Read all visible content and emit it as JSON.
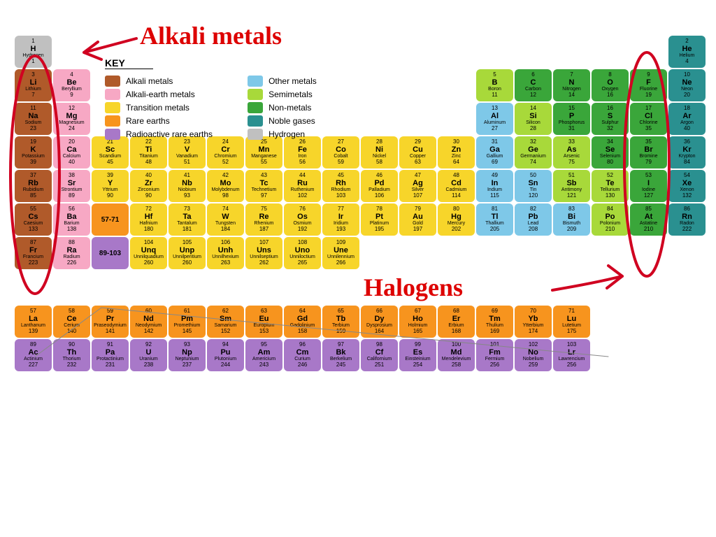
{
  "colors": {
    "hydrogen": "#c0c0c0",
    "alkali": "#b05a2a",
    "alkearth": "#f7a8c4",
    "transition": "#f7d52a",
    "rare": "#f7941e",
    "radioactive": "#a878c8",
    "other": "#7ec8e8",
    "semi": "#a8d93a",
    "nonmetal": "#3aa63a",
    "noble": "#2a9090",
    "annot": "#d00020"
  },
  "key": {
    "title": "KEY",
    "left": [
      {
        "c": "alkali",
        "t": "Alkali metals"
      },
      {
        "c": "alkearth",
        "t": "Alkali-earth metals"
      },
      {
        "c": "transition",
        "t": "Transition metals"
      },
      {
        "c": "rare",
        "t": "Rare earths"
      },
      {
        "c": "radioactive",
        "t": "Radioactive rare earths"
      }
    ],
    "right": [
      {
        "c": "other",
        "t": "Other metals"
      },
      {
        "c": "semi",
        "t": "Semimetals"
      },
      {
        "c": "nonmetal",
        "t": "Non-metals"
      },
      {
        "c": "noble",
        "t": "Noble gases"
      },
      {
        "c": "hydrogen",
        "t": "Hydrogen"
      }
    ]
  },
  "annotations": {
    "alkali": "Alkali metals",
    "halogens": "Halogens"
  },
  "lanth_range": "57-71",
  "act_range": "89-103",
  "elements": [
    {
      "n": 1,
      "s": "H",
      "name": "Hydrogen",
      "m": "1",
      "c": "hydrogen",
      "r": 1,
      "col": 1
    },
    {
      "n": 2,
      "s": "He",
      "name": "Helium",
      "m": "4",
      "c": "noble",
      "r": 1,
      "col": 18
    },
    {
      "n": 3,
      "s": "Li",
      "name": "Lithium",
      "m": "7",
      "c": "alkali",
      "r": 2,
      "col": 1
    },
    {
      "n": 4,
      "s": "Be",
      "name": "Beryllium",
      "m": "9",
      "c": "alkearth",
      "r": 2,
      "col": 2
    },
    {
      "n": 5,
      "s": "B",
      "name": "Boron",
      "m": "11",
      "c": "semi",
      "r": 2,
      "col": 13
    },
    {
      "n": 6,
      "s": "C",
      "name": "Carbon",
      "m": "12",
      "c": "nonmetal",
      "r": 2,
      "col": 14
    },
    {
      "n": 7,
      "s": "N",
      "name": "Nitrogen",
      "m": "14",
      "c": "nonmetal",
      "r": 2,
      "col": 15
    },
    {
      "n": 8,
      "s": "O",
      "name": "Oxygen",
      "m": "16",
      "c": "nonmetal",
      "r": 2,
      "col": 16
    },
    {
      "n": 9,
      "s": "F",
      "name": "Fluorine",
      "m": "19",
      "c": "nonmetal",
      "r": 2,
      "col": 17
    },
    {
      "n": 10,
      "s": "Ne",
      "name": "Neon",
      "m": "20",
      "c": "noble",
      "r": 2,
      "col": 18
    },
    {
      "n": 11,
      "s": "Na",
      "name": "Sodium",
      "m": "23",
      "c": "alkali",
      "r": 3,
      "col": 1
    },
    {
      "n": 12,
      "s": "Mg",
      "name": "Magnesium",
      "m": "24",
      "c": "alkearth",
      "r": 3,
      "col": 2
    },
    {
      "n": 13,
      "s": "Al",
      "name": "Aluminum",
      "m": "27",
      "c": "other",
      "r": 3,
      "col": 13
    },
    {
      "n": 14,
      "s": "Si",
      "name": "Silicon",
      "m": "28",
      "c": "semi",
      "r": 3,
      "col": 14
    },
    {
      "n": 15,
      "s": "P",
      "name": "Phosphorus",
      "m": "31",
      "c": "nonmetal",
      "r": 3,
      "col": 15
    },
    {
      "n": 16,
      "s": "S",
      "name": "Sulphur",
      "m": "32",
      "c": "nonmetal",
      "r": 3,
      "col": 16
    },
    {
      "n": 17,
      "s": "Cl",
      "name": "Chlorine",
      "m": "35",
      "c": "nonmetal",
      "r": 3,
      "col": 17
    },
    {
      "n": 18,
      "s": "Ar",
      "name": "Argon",
      "m": "40",
      "c": "noble",
      "r": 3,
      "col": 18
    },
    {
      "n": 19,
      "s": "K",
      "name": "Potassium",
      "m": "39",
      "c": "alkali",
      "r": 4,
      "col": 1
    },
    {
      "n": 20,
      "s": "Ca",
      "name": "Calcium",
      "m": "40",
      "c": "alkearth",
      "r": 4,
      "col": 2
    },
    {
      "n": 21,
      "s": "Sc",
      "name": "Scandium",
      "m": "45",
      "c": "transition",
      "r": 4,
      "col": 3
    },
    {
      "n": 22,
      "s": "Ti",
      "name": "Titanium",
      "m": "48",
      "c": "transition",
      "r": 4,
      "col": 4
    },
    {
      "n": 23,
      "s": "V",
      "name": "Vanadium",
      "m": "51",
      "c": "transition",
      "r": 4,
      "col": 5
    },
    {
      "n": 24,
      "s": "Cr",
      "name": "Chromium",
      "m": "52",
      "c": "transition",
      "r": 4,
      "col": 6
    },
    {
      "n": 25,
      "s": "Mn",
      "name": "Manganese",
      "m": "55",
      "c": "transition",
      "r": 4,
      "col": 7
    },
    {
      "n": 26,
      "s": "Fe",
      "name": "Iron",
      "m": "56",
      "c": "transition",
      "r": 4,
      "col": 8
    },
    {
      "n": 27,
      "s": "Co",
      "name": "Cobalt",
      "m": "59",
      "c": "transition",
      "r": 4,
      "col": 9
    },
    {
      "n": 28,
      "s": "Ni",
      "name": "Nickel",
      "m": "58",
      "c": "transition",
      "r": 4,
      "col": 10
    },
    {
      "n": 29,
      "s": "Cu",
      "name": "Copper",
      "m": "63",
      "c": "transition",
      "r": 4,
      "col": 11
    },
    {
      "n": 30,
      "s": "Zn",
      "name": "Zinc",
      "m": "64",
      "c": "transition",
      "r": 4,
      "col": 12
    },
    {
      "n": 31,
      "s": "Ga",
      "name": "Gallium",
      "m": "69",
      "c": "other",
      "r": 4,
      "col": 13
    },
    {
      "n": 32,
      "s": "Ge",
      "name": "Germanium",
      "m": "74",
      "c": "semi",
      "r": 4,
      "col": 14
    },
    {
      "n": 33,
      "s": "As",
      "name": "Arsenic",
      "m": "75",
      "c": "semi",
      "r": 4,
      "col": 15
    },
    {
      "n": 34,
      "s": "Se",
      "name": "Selenium",
      "m": "80",
      "c": "nonmetal",
      "r": 4,
      "col": 16
    },
    {
      "n": 35,
      "s": "Br",
      "name": "Bromine",
      "m": "79",
      "c": "nonmetal",
      "r": 4,
      "col": 17
    },
    {
      "n": 36,
      "s": "Kr",
      "name": "Krypton",
      "m": "84",
      "c": "noble",
      "r": 4,
      "col": 18
    },
    {
      "n": 37,
      "s": "Rb",
      "name": "Rubidium",
      "m": "85",
      "c": "alkali",
      "r": 5,
      "col": 1
    },
    {
      "n": 38,
      "s": "Sr",
      "name": "Strontium",
      "m": "89",
      "c": "alkearth",
      "r": 5,
      "col": 2
    },
    {
      "n": 39,
      "s": "Y",
      "name": "Yttrium",
      "m": "90",
      "c": "transition",
      "r": 5,
      "col": 3
    },
    {
      "n": 40,
      "s": "Zr",
      "name": "Zirconium",
      "m": "90",
      "c": "transition",
      "r": 5,
      "col": 4
    },
    {
      "n": 41,
      "s": "Nb",
      "name": "Niobium",
      "m": "93",
      "c": "transition",
      "r": 5,
      "col": 5
    },
    {
      "n": 42,
      "s": "Mo",
      "name": "Molybdenum",
      "m": "98",
      "c": "transition",
      "r": 5,
      "col": 6
    },
    {
      "n": 43,
      "s": "Tc",
      "name": "Technetium",
      "m": "97",
      "c": "transition",
      "r": 5,
      "col": 7
    },
    {
      "n": 44,
      "s": "Ru",
      "name": "Ruthenium",
      "m": "102",
      "c": "transition",
      "r": 5,
      "col": 8
    },
    {
      "n": 45,
      "s": "Rh",
      "name": "Rhodium",
      "m": "103",
      "c": "transition",
      "r": 5,
      "col": 9
    },
    {
      "n": 46,
      "s": "Pd",
      "name": "Palladium",
      "m": "106",
      "c": "transition",
      "r": 5,
      "col": 10
    },
    {
      "n": 47,
      "s": "Ag",
      "name": "Silver",
      "m": "107",
      "c": "transition",
      "r": 5,
      "col": 11
    },
    {
      "n": 48,
      "s": "Cd",
      "name": "Cadmium",
      "m": "114",
      "c": "transition",
      "r": 5,
      "col": 12
    },
    {
      "n": 49,
      "s": "In",
      "name": "Indium",
      "m": "115",
      "c": "other",
      "r": 5,
      "col": 13
    },
    {
      "n": 50,
      "s": "Sn",
      "name": "Tin",
      "m": "120",
      "c": "other",
      "r": 5,
      "col": 14
    },
    {
      "n": 51,
      "s": "Sb",
      "name": "Antimony",
      "m": "121",
      "c": "semi",
      "r": 5,
      "col": 15
    },
    {
      "n": 52,
      "s": "Te",
      "name": "Tellurium",
      "m": "130",
      "c": "semi",
      "r": 5,
      "col": 16
    },
    {
      "n": 53,
      "s": "I",
      "name": "Iodine",
      "m": "127",
      "c": "nonmetal",
      "r": 5,
      "col": 17
    },
    {
      "n": 54,
      "s": "Xe",
      "name": "Xenon",
      "m": "132",
      "c": "noble",
      "r": 5,
      "col": 18
    },
    {
      "n": 55,
      "s": "Cs",
      "name": "Caesium",
      "m": "133",
      "c": "alkali",
      "r": 6,
      "col": 1
    },
    {
      "n": 56,
      "s": "Ba",
      "name": "Barium",
      "m": "138",
      "c": "alkearth",
      "r": 6,
      "col": 2
    },
    {
      "n": 72,
      "s": "Hf",
      "name": "Hafnium",
      "m": "180",
      "c": "transition",
      "r": 6,
      "col": 4
    },
    {
      "n": 73,
      "s": "Ta",
      "name": "Tantalum",
      "m": "181",
      "c": "transition",
      "r": 6,
      "col": 5
    },
    {
      "n": 74,
      "s": "W",
      "name": "Tungsten",
      "m": "184",
      "c": "transition",
      "r": 6,
      "col": 6
    },
    {
      "n": 75,
      "s": "Re",
      "name": "Rhenium",
      "m": "187",
      "c": "transition",
      "r": 6,
      "col": 7
    },
    {
      "n": 76,
      "s": "Os",
      "name": "Osmium",
      "m": "192",
      "c": "transition",
      "r": 6,
      "col": 8
    },
    {
      "n": 77,
      "s": "Ir",
      "name": "Iridium",
      "m": "193",
      "c": "transition",
      "r": 6,
      "col": 9
    },
    {
      "n": 78,
      "s": "Pt",
      "name": "Platinum",
      "m": "195",
      "c": "transition",
      "r": 6,
      "col": 10
    },
    {
      "n": 79,
      "s": "Au",
      "name": "Gold",
      "m": "197",
      "c": "transition",
      "r": 6,
      "col": 11
    },
    {
      "n": 80,
      "s": "Hg",
      "name": "Mercury",
      "m": "202",
      "c": "transition",
      "r": 6,
      "col": 12
    },
    {
      "n": 81,
      "s": "Tl",
      "name": "Thallium",
      "m": "205",
      "c": "other",
      "r": 6,
      "col": 13
    },
    {
      "n": 82,
      "s": "Pb",
      "name": "Lead",
      "m": "208",
      "c": "other",
      "r": 6,
      "col": 14
    },
    {
      "n": 83,
      "s": "Bi",
      "name": "Bismuth",
      "m": "209",
      "c": "other",
      "r": 6,
      "col": 15
    },
    {
      "n": 84,
      "s": "Po",
      "name": "Polonium",
      "m": "210",
      "c": "semi",
      "r": 6,
      "col": 16
    },
    {
      "n": 85,
      "s": "At",
      "name": "Astatine",
      "m": "210",
      "c": "nonmetal",
      "r": 6,
      "col": 17
    },
    {
      "n": 86,
      "s": "Rn",
      "name": "Radon",
      "m": "222",
      "c": "noble",
      "r": 6,
      "col": 18
    },
    {
      "n": 87,
      "s": "Fr",
      "name": "Francium",
      "m": "223",
      "c": "alkali",
      "r": 7,
      "col": 1
    },
    {
      "n": 88,
      "s": "Ra",
      "name": "Radium",
      "m": "226",
      "c": "alkearth",
      "r": 7,
      "col": 2
    },
    {
      "n": 104,
      "s": "Unq",
      "name": "Unnilquadium",
      "m": "260",
      "c": "transition",
      "r": 7,
      "col": 4
    },
    {
      "n": 105,
      "s": "Unp",
      "name": "Unnilpentium",
      "m": "260",
      "c": "transition",
      "r": 7,
      "col": 5
    },
    {
      "n": 106,
      "s": "Unh",
      "name": "Unnilhexium",
      "m": "263",
      "c": "transition",
      "r": 7,
      "col": 6
    },
    {
      "n": 107,
      "s": "Uns",
      "name": "Unnilseptium",
      "m": "262",
      "c": "transition",
      "r": 7,
      "col": 7
    },
    {
      "n": 108,
      "s": "Uno",
      "name": "Unniloctium",
      "m": "265",
      "c": "transition",
      "r": 7,
      "col": 8
    },
    {
      "n": 109,
      "s": "Une",
      "name": "Unnilennium",
      "m": "266",
      "c": "transition",
      "r": 7,
      "col": 9
    },
    {
      "n": 57,
      "s": "La",
      "name": "Lanthanum",
      "m": "139",
      "c": "rare",
      "r": 8,
      "col": 1
    },
    {
      "n": 58,
      "s": "Ce",
      "name": "Cerium",
      "m": "140",
      "c": "rare",
      "r": 8,
      "col": 2
    },
    {
      "n": 59,
      "s": "Pr",
      "name": "Praseodymium",
      "m": "141",
      "c": "rare",
      "r": 8,
      "col": 3
    },
    {
      "n": 60,
      "s": "Nd",
      "name": "Neodymium",
      "m": "142",
      "c": "rare",
      "r": 8,
      "col": 4
    },
    {
      "n": 61,
      "s": "Pm",
      "name": "Promethium",
      "m": "145",
      "c": "rare",
      "r": 8,
      "col": 5
    },
    {
      "n": 62,
      "s": "Sm",
      "name": "Samarium",
      "m": "152",
      "c": "rare",
      "r": 8,
      "col": 6
    },
    {
      "n": 63,
      "s": "Eu",
      "name": "Europium",
      "m": "153",
      "c": "rare",
      "r": 8,
      "col": 7
    },
    {
      "n": 64,
      "s": "Gd",
      "name": "Gadolinium",
      "m": "158",
      "c": "rare",
      "r": 8,
      "col": 8
    },
    {
      "n": 65,
      "s": "Tb",
      "name": "Terbium",
      "m": "159",
      "c": "rare",
      "r": 8,
      "col": 9
    },
    {
      "n": 66,
      "s": "Dy",
      "name": "Dysprosium",
      "m": "164",
      "c": "rare",
      "r": 8,
      "col": 10
    },
    {
      "n": 67,
      "s": "Ho",
      "name": "Holmium",
      "m": "165",
      "c": "rare",
      "r": 8,
      "col": 11
    },
    {
      "n": 68,
      "s": "Er",
      "name": "Erbium",
      "m": "168",
      "c": "rare",
      "r": 8,
      "col": 12
    },
    {
      "n": 69,
      "s": "Tm",
      "name": "Thulium",
      "m": "169",
      "c": "rare",
      "r": 8,
      "col": 13
    },
    {
      "n": 70,
      "s": "Yb",
      "name": "Ytterbium",
      "m": "174",
      "c": "rare",
      "r": 8,
      "col": 14
    },
    {
      "n": 71,
      "s": "Lu",
      "name": "Lutetium",
      "m": "175",
      "c": "rare",
      "r": 8,
      "col": 15
    },
    {
      "n": 89,
      "s": "Ac",
      "name": "Actinium",
      "m": "227",
      "c": "radioactive",
      "r": 9,
      "col": 1
    },
    {
      "n": 90,
      "s": "Th",
      "name": "Thorium",
      "m": "232",
      "c": "radioactive",
      "r": 9,
      "col": 2
    },
    {
      "n": 91,
      "s": "Pa",
      "name": "Protactinium",
      "m": "231",
      "c": "radioactive",
      "r": 9,
      "col": 3
    },
    {
      "n": 92,
      "s": "U",
      "name": "Uranium",
      "m": "238",
      "c": "radioactive",
      "r": 9,
      "col": 4
    },
    {
      "n": 93,
      "s": "Np",
      "name": "Neptunium",
      "m": "237",
      "c": "radioactive",
      "r": 9,
      "col": 5
    },
    {
      "n": 94,
      "s": "Pu",
      "name": "Plutonium",
      "m": "244",
      "c": "radioactive",
      "r": 9,
      "col": 6
    },
    {
      "n": 95,
      "s": "Am",
      "name": "Americium",
      "m": "243",
      "c": "radioactive",
      "r": 9,
      "col": 7
    },
    {
      "n": 96,
      "s": "Cm",
      "name": "Curium",
      "m": "246",
      "c": "radioactive",
      "r": 9,
      "col": 8
    },
    {
      "n": 97,
      "s": "Bk",
      "name": "Berkelium",
      "m": "245",
      "c": "radioactive",
      "r": 9,
      "col": 9
    },
    {
      "n": 98,
      "s": "Cf",
      "name": "Californium",
      "m": "251",
      "c": "radioactive",
      "r": 9,
      "col": 10
    },
    {
      "n": 99,
      "s": "Es",
      "name": "Einsteinium",
      "m": "254",
      "c": "radioactive",
      "r": 9,
      "col": 11
    },
    {
      "n": 100,
      "s": "Md",
      "name": "Mendelevium",
      "m": "258",
      "c": "radioactive",
      "r": 9,
      "col": 12
    },
    {
      "n": 101,
      "s": "Fm",
      "name": "Fermium",
      "m": "256",
      "c": "radioactive",
      "r": 9,
      "col": 13
    },
    {
      "n": 102,
      "s": "No",
      "name": "Nobelium",
      "m": "259",
      "c": "radioactive",
      "r": 9,
      "col": 14
    },
    {
      "n": 103,
      "s": "Lr",
      "name": "Lawrencium",
      "m": "256",
      "c": "radioactive",
      "r": 9,
      "col": 15
    }
  ]
}
